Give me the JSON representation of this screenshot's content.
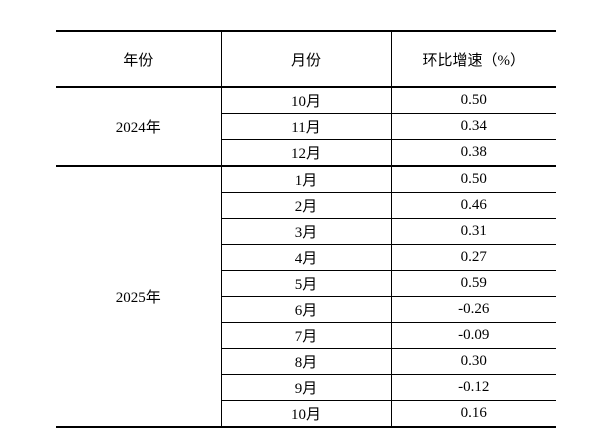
{
  "table": {
    "headers": [
      "年份",
      "月份",
      "环比增速（%）"
    ],
    "groups": [
      {
        "year": "2024年",
        "rows": [
          [
            "10月",
            "0.50"
          ],
          [
            "11月",
            "0.34"
          ],
          [
            "12月",
            "0.38"
          ]
        ]
      },
      {
        "year": "2025年",
        "rows": [
          [
            "1月",
            "0.50"
          ],
          [
            "2月",
            "0.46"
          ],
          [
            "3月",
            "0.31"
          ],
          [
            "4月",
            "0.27"
          ],
          [
            "5月",
            "0.59"
          ],
          [
            "6月",
            "-0.26"
          ],
          [
            "7月",
            "-0.09"
          ],
          [
            "8月",
            "0.30"
          ],
          [
            "9月",
            "-0.12"
          ],
          [
            "10月",
            "0.16"
          ]
        ]
      }
    ]
  },
  "colors": {
    "border": "#000000",
    "background": "#ffffff",
    "text": "#000000"
  }
}
